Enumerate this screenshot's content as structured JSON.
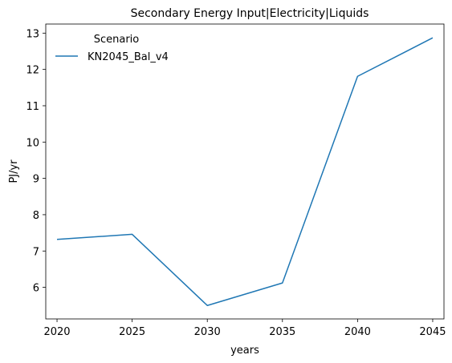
{
  "chart_data": {
    "type": "line",
    "title": "Secondary Energy Input|Electricity|Liquids",
    "xlabel": "years",
    "ylabel": "PJ/yr",
    "x": [
      2020,
      2025,
      2030,
      2035,
      2040,
      2045
    ],
    "x_ticks": [
      "2020",
      "2025",
      "2030",
      "2035",
      "2040",
      "2045"
    ],
    "y_ticks": [
      "6",
      "7",
      "8",
      "9",
      "10",
      "11",
      "12",
      "13"
    ],
    "xlim": [
      2019.25,
      2045.75
    ],
    "ylim": [
      5.13,
      13.25
    ],
    "grid": false,
    "legend": {
      "title": "Scenario",
      "placement": "top-left"
    },
    "series": [
      {
        "name": "KN2045_Bal_v4",
        "color": "#1f77b4",
        "values": [
          7.32,
          7.46,
          5.5,
          6.12,
          11.81,
          12.87
        ]
      }
    ]
  }
}
